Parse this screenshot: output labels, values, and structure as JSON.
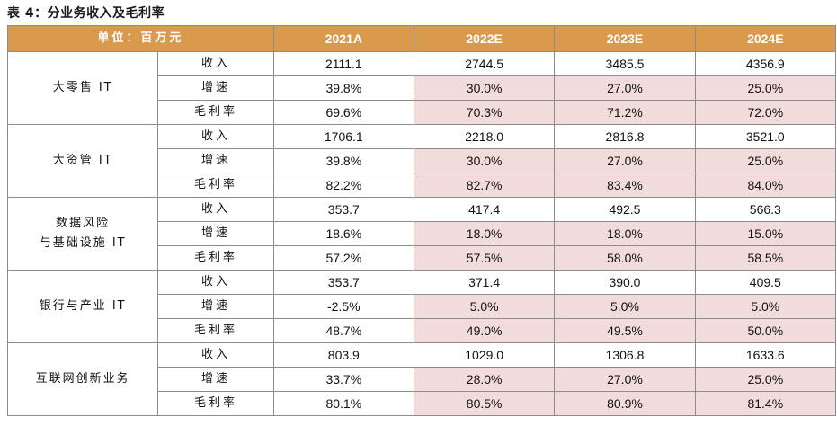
{
  "caption": "表 4：分业务收入及毛利率",
  "header": {
    "unit": "单位：百万元",
    "years": [
      "2021A",
      "2022E",
      "2023E",
      "2024E"
    ]
  },
  "segments": [
    {
      "name": "大零售 IT",
      "rows": [
        {
          "metric": "收入",
          "values": [
            "2111.1",
            "2744.5",
            "3485.5",
            "4356.9"
          ]
        },
        {
          "metric": "增速",
          "values": [
            "39.8%",
            "30.0%",
            "27.0%",
            "25.0%"
          ]
        },
        {
          "metric": "毛利率",
          "values": [
            "69.6%",
            "70.3%",
            "71.2%",
            "72.0%"
          ]
        }
      ]
    },
    {
      "name": "大资管 IT",
      "rows": [
        {
          "metric": "收入",
          "values": [
            "1706.1",
            "2218.0",
            "2816.8",
            "3521.0"
          ]
        },
        {
          "metric": "增速",
          "values": [
            "39.8%",
            "30.0%",
            "27.0%",
            "25.0%"
          ]
        },
        {
          "metric": "毛利率",
          "values": [
            "82.2%",
            "82.7%",
            "83.4%",
            "84.0%"
          ]
        }
      ]
    },
    {
      "name_line1": "数据风险",
      "name_line2": "与基础设施 IT",
      "rows": [
        {
          "metric": "收入",
          "values": [
            "353.7",
            "417.4",
            "492.5",
            "566.3"
          ]
        },
        {
          "metric": "增速",
          "values": [
            "18.6%",
            "18.0%",
            "18.0%",
            "15.0%"
          ]
        },
        {
          "metric": "毛利率",
          "values": [
            "57.2%",
            "57.5%",
            "58.0%",
            "58.5%"
          ]
        }
      ]
    },
    {
      "name": "银行与产业 IT",
      "rows": [
        {
          "metric": "收入",
          "values": [
            "353.7",
            "371.4",
            "390.0",
            "409.5"
          ]
        },
        {
          "metric": "增速",
          "values": [
            "-2.5%",
            "5.0%",
            "5.0%",
            "5.0%"
          ]
        },
        {
          "metric": "毛利率",
          "values": [
            "48.7%",
            "49.0%",
            "49.5%",
            "50.0%"
          ]
        }
      ]
    },
    {
      "name": "互联网创新业务",
      "rows": [
        {
          "metric": "收入",
          "values": [
            "803.9",
            "1029.0",
            "1306.8",
            "1633.6"
          ]
        },
        {
          "metric": "增速",
          "values": [
            "33.7%",
            "28.0%",
            "27.0%",
            "25.0%"
          ]
        },
        {
          "metric": "毛利率",
          "values": [
            "80.1%",
            "80.5%",
            "80.9%",
            "81.4%"
          ]
        }
      ]
    }
  ],
  "colors": {
    "header_bg": "#d99a4e",
    "forecast_shade": "#f2dcdb",
    "border": "#8c8c8c"
  }
}
